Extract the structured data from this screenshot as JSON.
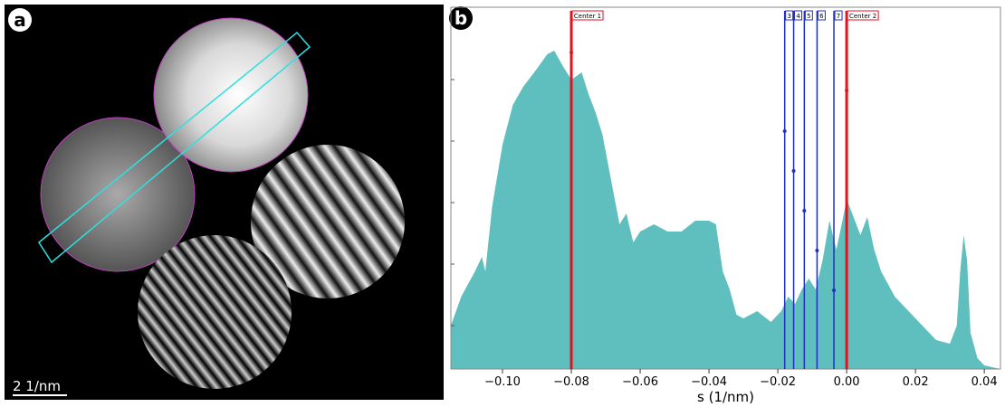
{
  "panels": {
    "a": {
      "label": "a",
      "scale_bar": "2 1/nm"
    },
    "b": {
      "label": "b"
    }
  },
  "chart_data": {
    "type": "area",
    "x_label": "s (1/nm)",
    "color": "#5fbfbe",
    "x": [
      -0.115,
      -0.112,
      -0.108,
      -0.106,
      -0.105,
      -0.103,
      -0.1,
      -0.097,
      -0.094,
      -0.09,
      -0.087,
      -0.085,
      -0.082,
      -0.08,
      -0.077,
      -0.075,
      -0.073,
      -0.071,
      -0.068,
      -0.066,
      -0.064,
      -0.062,
      -0.06,
      -0.056,
      -0.052,
      -0.048,
      -0.044,
      -0.04,
      -0.038,
      -0.036,
      -0.034,
      -0.032,
      -0.03,
      -0.026,
      -0.022,
      -0.019,
      -0.017,
      -0.015,
      -0.013,
      -0.011,
      -0.009,
      -0.007,
      -0.005,
      -0.003,
      -0.001,
      0.0,
      0.002,
      0.004,
      0.006,
      0.008,
      0.01,
      0.014,
      0.018,
      0.022,
      0.026,
      0.03,
      0.032,
      0.033,
      0.034,
      0.035,
      0.036,
      0.038,
      0.04,
      0.0447
    ],
    "values": [
      12,
      20,
      27,
      31,
      27,
      45,
      62,
      73,
      78,
      83,
      87,
      88,
      83,
      80,
      82,
      76,
      71,
      65,
      50,
      40,
      43,
      35,
      38,
      40,
      38,
      38,
      41,
      41,
      40,
      27,
      22,
      15,
      14,
      16,
      13,
      16,
      20,
      18,
      22,
      25,
      22,
      30,
      41,
      33,
      42,
      47,
      42,
      37,
      42,
      33,
      27,
      20,
      16,
      12,
      8,
      7,
      12,
      27,
      37,
      30,
      10,
      3,
      1,
      0
    ],
    "xlim": [
      -0.115,
      0.0447
    ],
    "ylim": [
      0,
      100
    ],
    "xticks": [
      {
        "value": -0.1,
        "label": "−0.10"
      },
      {
        "value": -0.08,
        "label": "−0.08"
      },
      {
        "value": -0.06,
        "label": "−0.06"
      },
      {
        "value": -0.04,
        "label": "−0.04"
      },
      {
        "value": -0.02,
        "label": "−0.02"
      },
      {
        "value": 0,
        "label": "0.00"
      },
      {
        "value": 0.02,
        "label": "0.02"
      },
      {
        "value": 0.04,
        "label": "0.04"
      }
    ],
    "markers": [
      {
        "label": "Center 1",
        "value": -0.08,
        "color": "#e0141e"
      },
      {
        "label": "3",
        "value": -0.018,
        "color": "#1f2fc0"
      },
      {
        "label": "4",
        "value": -0.0154,
        "color": "#1f2fc0"
      },
      {
        "label": "5",
        "value": -0.0123,
        "color": "#1f2fc0"
      },
      {
        "label": "6",
        "value": -0.0086,
        "color": "#1f2fc0"
      },
      {
        "label": "7",
        "value": -0.0037,
        "color": "#1f2fc0"
      },
      {
        "label": "Center 2",
        "value": 0,
        "color": "#e0141e"
      }
    ]
  }
}
